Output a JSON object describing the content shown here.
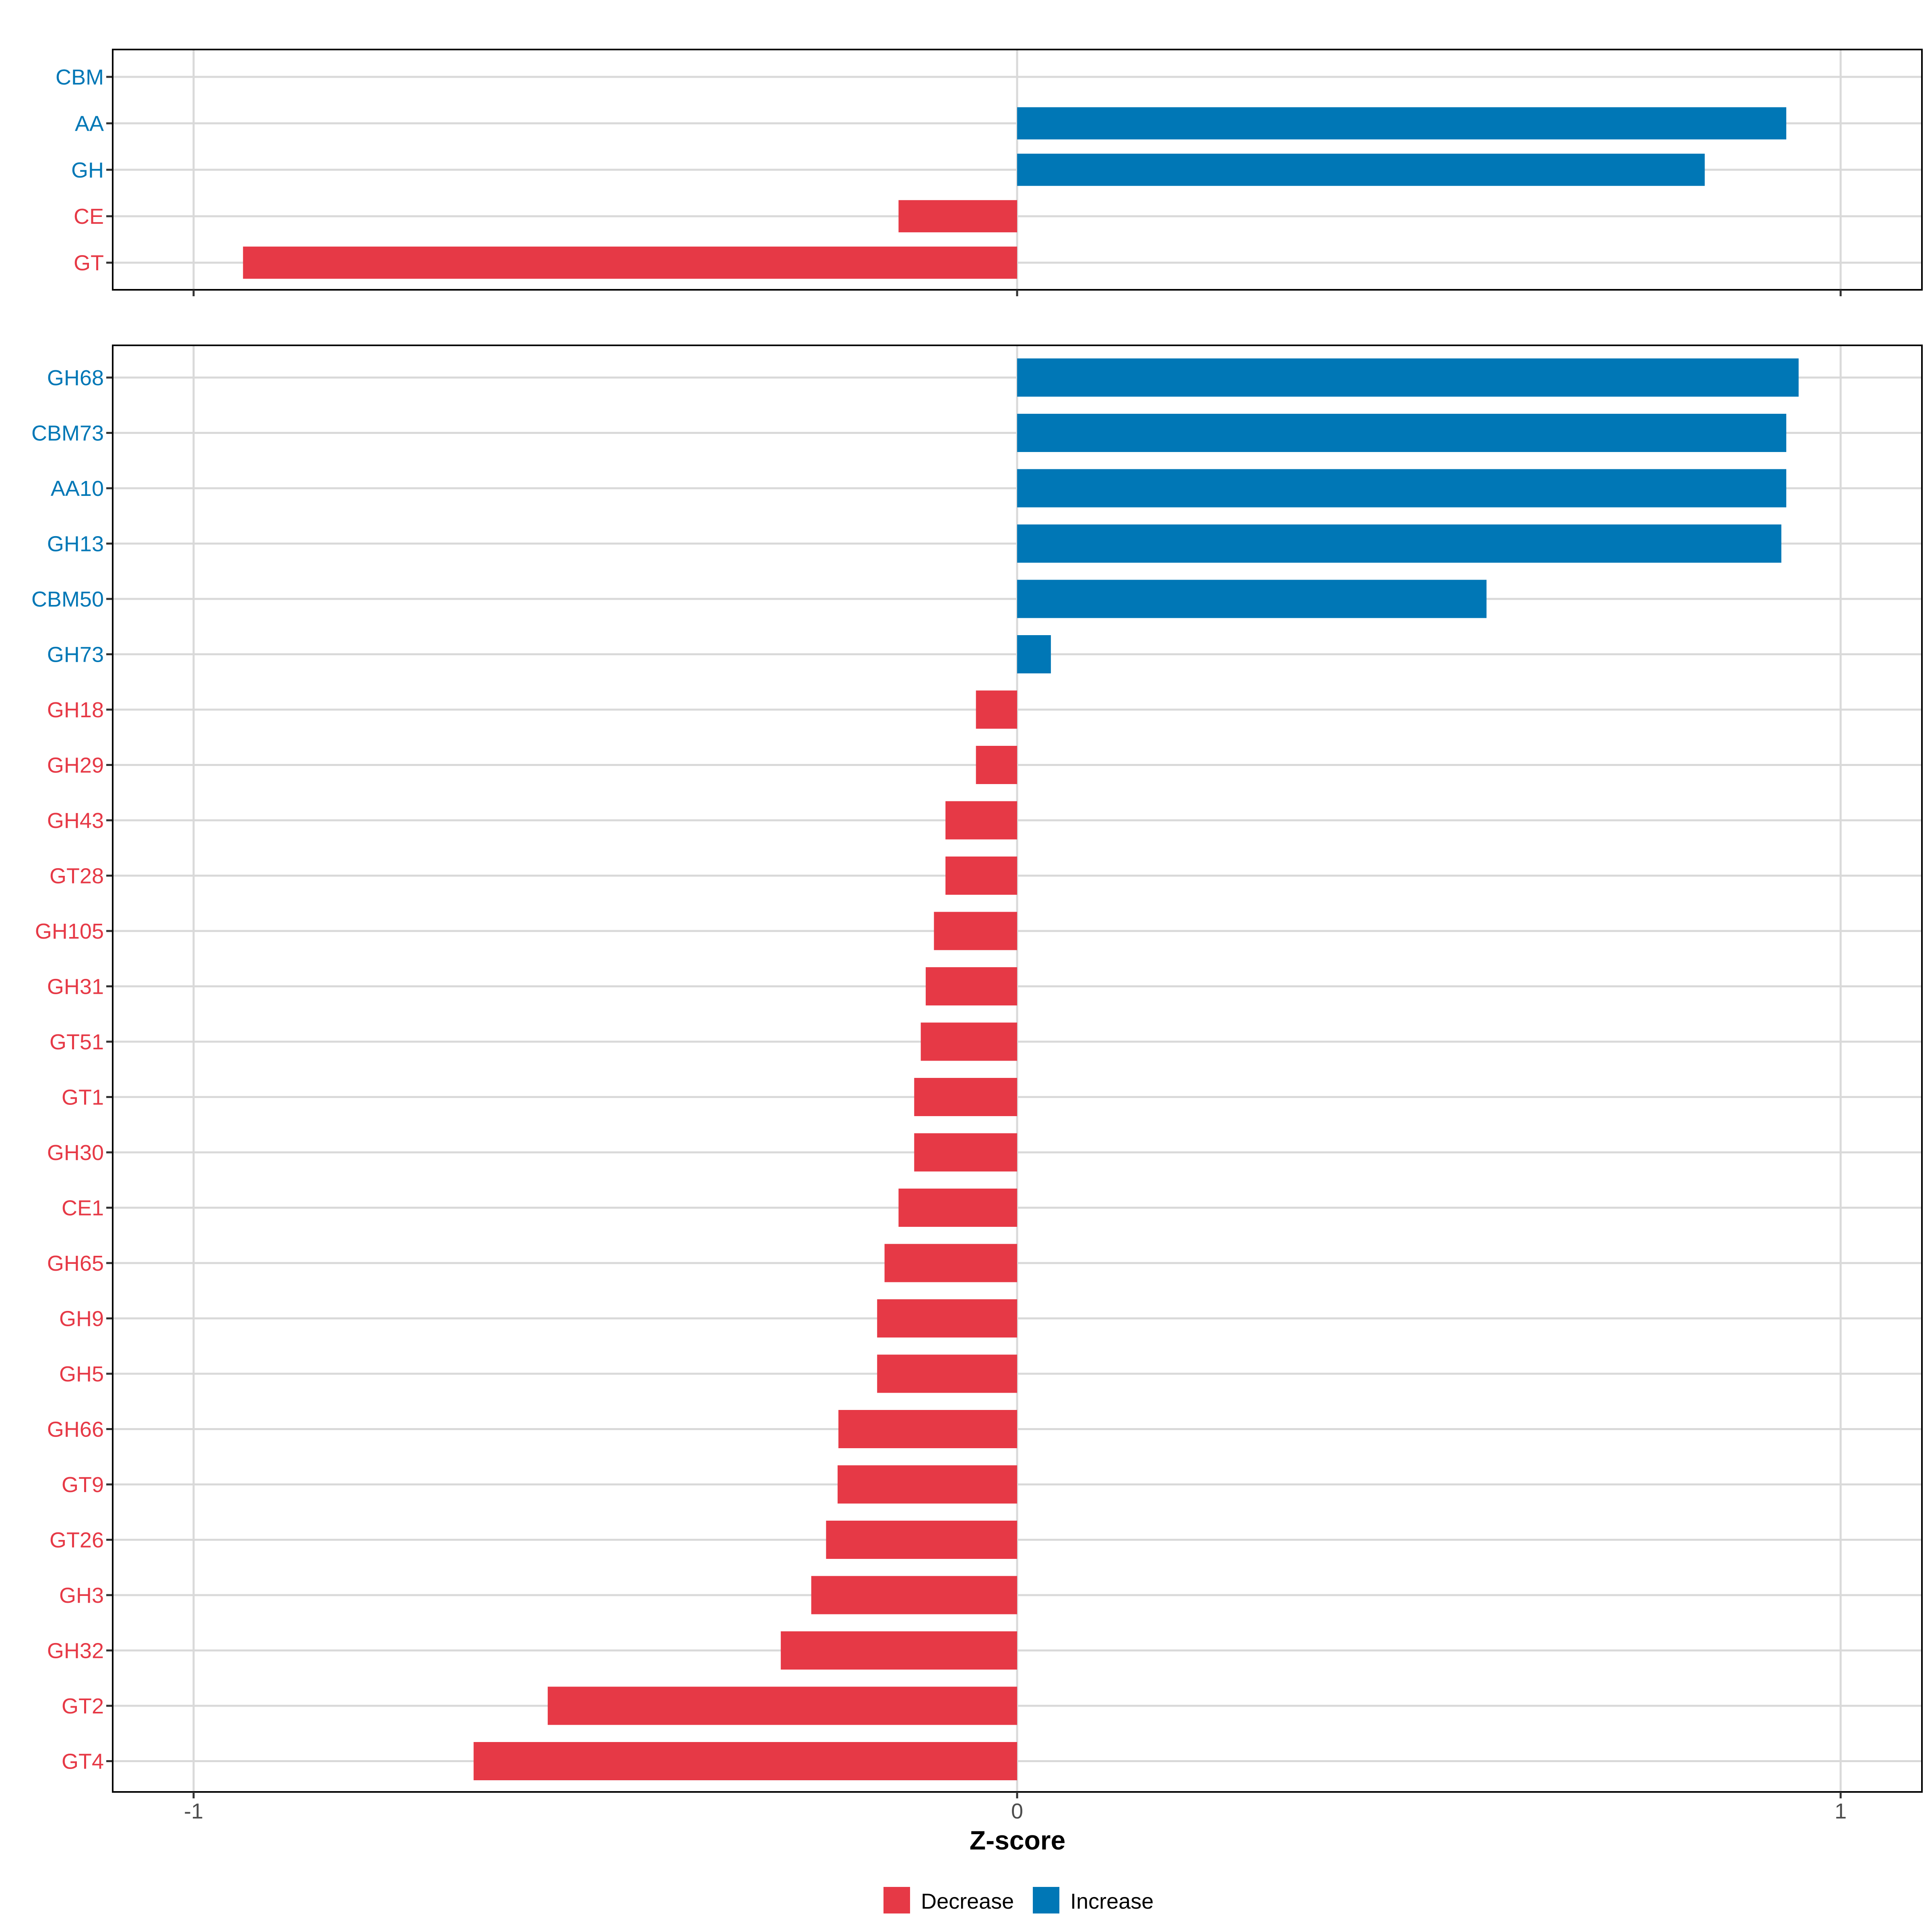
{
  "chart_data": [
    {
      "type": "bar",
      "orientation": "horizontal",
      "panel": "top",
      "categories": [
        "CBM",
        "AA",
        "GH",
        "CE",
        "GT"
      ],
      "values": [
        0.0,
        0.934,
        0.835,
        -0.144,
        -0.94
      ],
      "xlim": [
        -1.1,
        1.1
      ],
      "grid": true
    },
    {
      "type": "bar",
      "orientation": "horizontal",
      "panel": "bottom",
      "categories": [
        "GH68",
        "CBM73",
        "AA10",
        "GH13",
        "CBM50",
        "GH73",
        "GH18",
        "GH29",
        "GH43",
        "GT28",
        "GH105",
        "GH31",
        "GT51",
        "GT1",
        "GH30",
        "CE1",
        "GH65",
        "GH9",
        "GH5",
        "GH66",
        "GT9",
        "GT26",
        "GH3",
        "GH32",
        "GT2",
        "GT4"
      ],
      "values": [
        0.949,
        0.934,
        0.934,
        0.928,
        0.57,
        0.041,
        -0.05,
        -0.05,
        -0.087,
        -0.087,
        -0.101,
        -0.111,
        -0.117,
        -0.125,
        -0.125,
        -0.144,
        -0.161,
        -0.17,
        -0.17,
        -0.217,
        -0.218,
        -0.232,
        -0.25,
        -0.287,
        -0.57,
        -0.66
      ],
      "xlim": [
        -1.1,
        1.1
      ],
      "xticks": [
        "-1",
        "0",
        "1"
      ],
      "xtick_values": [
        -1,
        0,
        1
      ],
      "xlabel": "Z-score",
      "grid": true
    }
  ],
  "legend": {
    "placement": "bottom",
    "items": [
      {
        "label": "Decrease",
        "color": "#E63946"
      },
      {
        "label": "Increase",
        "color": "#0077B6"
      }
    ]
  },
  "colors": {
    "decrease": "#E63946",
    "increase": "#0077B6"
  }
}
